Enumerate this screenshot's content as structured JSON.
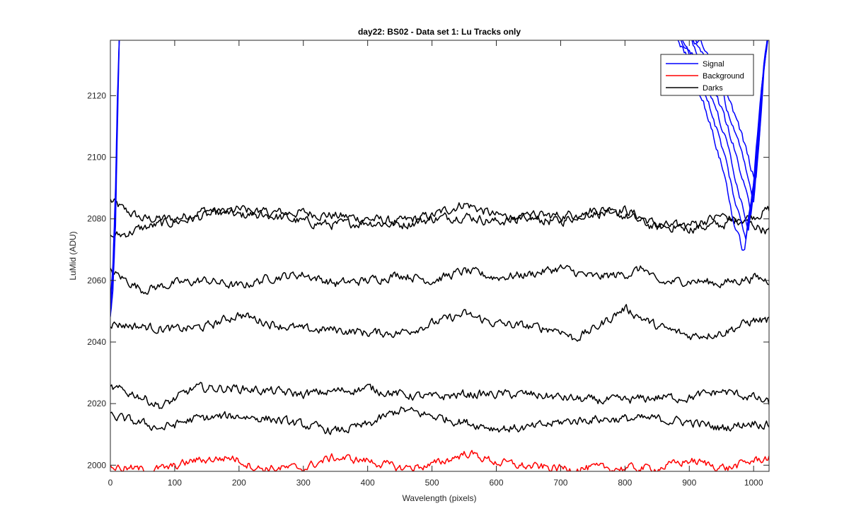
{
  "chart_data": {
    "type": "line",
    "title": "day22: BS02 - Data set 1: Lu Tracks only",
    "xlabel": "Wavelength (pixels)",
    "ylabel": "LuMid (ADU)",
    "xlim": [
      0,
      1024
    ],
    "ylim": [
      1998,
      2138
    ],
    "xticks": [
      0,
      100,
      200,
      300,
      400,
      500,
      600,
      700,
      800,
      900,
      1000
    ],
    "yticks": [
      2000,
      2020,
      2040,
      2060,
      2080,
      2100,
      2120
    ],
    "grid": false,
    "legend_position": "top-right",
    "legend": [
      {
        "label": "Signal",
        "color": "#0000ff"
      },
      {
        "label": "Background",
        "color": "#ff0000"
      },
      {
        "label": "Darks",
        "color": "#000000"
      }
    ],
    "series": [
      {
        "group": "Darks",
        "color": "#000000",
        "noise": 1.6,
        "x": [
          0,
          20,
          50,
          100,
          150,
          200,
          250,
          300,
          350,
          400,
          450,
          500,
          550,
          600,
          650,
          700,
          750,
          800,
          850,
          900,
          950,
          1000,
          1024
        ],
        "y": [
          2086,
          2083,
          2080,
          2080,
          2083,
          2081,
          2082,
          2082,
          2081,
          2080,
          2079,
          2081,
          2085,
          2081,
          2080,
          2079,
          2083,
          2083,
          2078,
          2077,
          2078,
          2081,
          2083
        ]
      },
      {
        "group": "Darks",
        "color": "#000000",
        "noise": 1.6,
        "x": [
          0,
          20,
          50,
          100,
          150,
          200,
          250,
          300,
          350,
          400,
          450,
          500,
          550,
          600,
          650,
          700,
          750,
          800,
          850,
          900,
          950,
          1000,
          1024
        ],
        "y": [
          2074,
          2075,
          2077,
          2079,
          2081,
          2083,
          2081,
          2079,
          2078,
          2079,
          2078,
          2080,
          2081,
          2079,
          2081,
          2081,
          2082,
          2081,
          2077,
          2078,
          2081,
          2078,
          2076
        ]
      },
      {
        "group": "Darks",
        "color": "#000000",
        "noise": 1.5,
        "x": [
          0,
          25,
          50,
          100,
          150,
          200,
          250,
          300,
          350,
          400,
          450,
          500,
          550,
          600,
          650,
          700,
          750,
          800,
          830,
          850,
          900,
          950,
          1000,
          1024
        ],
        "y": [
          2063,
          2060,
          2057,
          2059,
          2060,
          2058,
          2061,
          2062,
          2059,
          2060,
          2062,
          2060,
          2063,
          2061,
          2062,
          2064,
          2061,
          2062,
          2064,
          2059,
          2060,
          2059,
          2061,
          2060
        ]
      },
      {
        "group": "Darks",
        "color": "#000000",
        "noise": 1.5,
        "x": [
          0,
          50,
          100,
          150,
          200,
          250,
          300,
          350,
          400,
          450,
          500,
          550,
          600,
          650,
          700,
          720,
          750,
          800,
          850,
          900,
          950,
          1000,
          1024
        ],
        "y": [
          2046,
          2045,
          2044,
          2045,
          2049,
          2046,
          2044,
          2044,
          2043,
          2043,
          2046,
          2049,
          2046,
          2045,
          2044,
          2041,
          2044,
          2051,
          2045,
          2042,
          2043,
          2047,
          2047
        ]
      },
      {
        "group": "Darks",
        "color": "#000000",
        "noise": 1.5,
        "x": [
          0,
          40,
          80,
          130,
          200,
          250,
          300,
          350,
          400,
          450,
          500,
          550,
          600,
          650,
          700,
          750,
          800,
          850,
          900,
          950,
          1000,
          1024
        ],
        "y": [
          2025,
          2023,
          2019,
          2025,
          2025,
          2024,
          2023,
          2024,
          2025,
          2023,
          2022,
          2023,
          2023,
          2023,
          2022,
          2021,
          2021,
          2022,
          2022,
          2024,
          2022,
          2020
        ]
      },
      {
        "group": "Darks",
        "color": "#000000",
        "noise": 1.5,
        "x": [
          0,
          40,
          80,
          130,
          200,
          250,
          300,
          350,
          400,
          450,
          500,
          550,
          600,
          650,
          700,
          750,
          800,
          850,
          900,
          950,
          1000,
          1024
        ],
        "y": [
          2016,
          2014,
          2012,
          2015,
          2016,
          2015,
          2013,
          2011,
          2013,
          2018,
          2016,
          2014,
          2012,
          2012,
          2014,
          2015,
          2015,
          2015,
          2014,
          2012,
          2014,
          2013
        ]
      },
      {
        "group": "Background",
        "color": "#ff0000",
        "noise": 1.4,
        "x": [
          0,
          50,
          90,
          130,
          190,
          230,
          300,
          345,
          400,
          450,
          500,
          555,
          600,
          650,
          700,
          750,
          800,
          850,
          900,
          960,
          1000,
          1024
        ],
        "y": [
          1999.5,
          1998.5,
          1999,
          2001.5,
          2002.5,
          1999,
          1999,
          2002.5,
          2001.5,
          1999,
          2000,
          2004,
          2001,
          1999.5,
          1999,
          1999,
          1999,
          1999,
          2001.5,
          1999,
          2001.5,
          2002.5
        ]
      },
      {
        "group": "Signal",
        "color": "#0000ff",
        "noise": 0.4,
        "x": [
          0,
          4,
          8,
          11,
          14
        ],
        "y": [
          2048,
          2057,
          2078,
          2110,
          2140
        ]
      },
      {
        "group": "Signal",
        "color": "#0000ff",
        "noise": 0.4,
        "x": [
          0,
          4,
          8,
          11,
          14
        ],
        "y": [
          2050,
          2062,
          2085,
          2115,
          2140
        ]
      },
      {
        "group": "Signal",
        "color": "#0000ff",
        "noise": 0.4,
        "x": [
          0,
          4,
          8,
          11,
          14
        ],
        "y": [
          2053,
          2065,
          2090,
          2120,
          2140
        ]
      },
      {
        "group": "Signal",
        "color": "#0000ff",
        "noise": 1.2,
        "x": [
          878,
          895,
          910,
          925,
          940,
          955,
          970,
          985,
          1000,
          1012,
          1022
        ],
        "y": [
          2140,
          2133,
          2125,
          2116,
          2105,
          2094,
          2078,
          2069,
          2092,
          2122,
          2140
        ]
      },
      {
        "group": "Signal",
        "color": "#0000ff",
        "noise": 1.2,
        "x": [
          882,
          898,
          913,
          928,
          943,
          958,
          973,
          988,
          1002,
          1013,
          1022
        ],
        "y": [
          2140,
          2134,
          2127,
          2119,
          2109,
          2098,
          2084,
          2074,
          2095,
          2124,
          2140
        ]
      },
      {
        "group": "Signal",
        "color": "#0000ff",
        "noise": 1.2,
        "x": [
          886,
          902,
          917,
          932,
          947,
          962,
          977,
          992,
          1004,
          1014,
          1023
        ],
        "y": [
          2140,
          2135,
          2129,
          2121,
          2112,
          2102,
          2089,
          2077,
          2099,
          2126,
          2140
        ]
      },
      {
        "group": "Signal",
        "color": "#0000ff",
        "noise": 1.2,
        "x": [
          890,
          906,
          921,
          936,
          951,
          966,
          981,
          996,
          1006,
          1015,
          1023
        ],
        "y": [
          2140,
          2136,
          2131,
          2124,
          2115,
          2106,
          2094,
          2082,
          2102,
          2128,
          2140
        ]
      },
      {
        "group": "Signal",
        "color": "#0000ff",
        "noise": 1.2,
        "x": [
          894,
          910,
          925,
          940,
          955,
          970,
          985,
          1000,
          1008,
          1016,
          1024
        ],
        "y": [
          2140,
          2137,
          2132,
          2126,
          2118,
          2109,
          2098,
          2086,
          2105,
          2130,
          2140
        ]
      },
      {
        "group": "Signal",
        "color": "#0000ff",
        "noise": 1.2,
        "x": [
          898,
          914,
          929,
          944,
          959,
          974,
          989,
          1003,
          1010,
          1017,
          1024
        ],
        "y": [
          2140,
          2138,
          2134,
          2128,
          2121,
          2112,
          2102,
          2091,
          2109,
          2132,
          2140
        ]
      }
    ]
  }
}
